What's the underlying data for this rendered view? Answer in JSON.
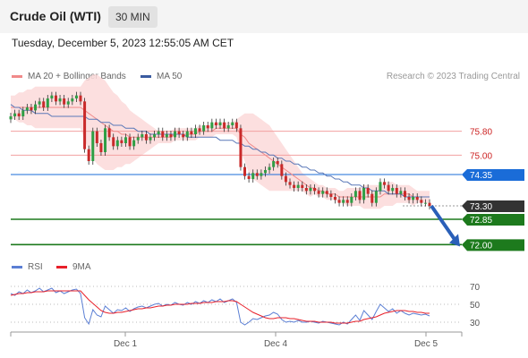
{
  "header": {
    "title": "Crude Oil (WTI)",
    "timeframe": "30 MIN"
  },
  "datetime": "Tuesday, December 5, 2023 12:55:05 AM CET",
  "legend": {
    "items": [
      {
        "label": "MA 20 + Bollinger Bands",
        "color": "#f08a8a"
      },
      {
        "label": "MA 50",
        "color": "#3a5ba0"
      }
    ],
    "copyright": "Research © 2023 Trading Central"
  },
  "rsi_legend": {
    "items": [
      {
        "label": "RSI",
        "color": "#5b7fd4"
      },
      {
        "label": "9MA",
        "color": "#e8202a"
      }
    ]
  },
  "chart_data": {
    "type": "candlestick",
    "x_ticks": [
      "Dec 1",
      "Dec 4",
      "Dec 5"
    ],
    "price_ylim": [
      71.8,
      77.2
    ],
    "levels": [
      {
        "label": "75.80",
        "value": 75.8,
        "kind": "resistance",
        "color": "#cc2222"
      },
      {
        "label": "75.00",
        "value": 75.0,
        "kind": "resistance",
        "color": "#cc2222"
      },
      {
        "label": "74.35",
        "value": 74.35,
        "kind": "pivot",
        "color": "#1a6cd8"
      },
      {
        "label": "73.30",
        "value": 73.3,
        "kind": "last",
        "color": "#333333"
      },
      {
        "label": "72.85",
        "value": 72.85,
        "kind": "support",
        "color": "#1d7a1d"
      },
      {
        "label": "72.00",
        "value": 72.0,
        "kind": "support",
        "color": "#1d7a1d"
      }
    ],
    "close": [
      76.3,
      76.4,
      76.3,
      76.5,
      76.6,
      76.5,
      76.7,
      76.8,
      76.6,
      76.9,
      77.0,
      76.8,
      76.9,
      76.7,
      76.8,
      76.9,
      77.0,
      76.8,
      75.2,
      74.8,
      75.8,
      75.4,
      75.1,
      75.9,
      75.6,
      75.3,
      75.5,
      75.4,
      75.6,
      75.3,
      75.5,
      75.6,
      75.7,
      75.5,
      75.6,
      75.7,
      75.8,
      75.6,
      75.7,
      75.6,
      75.8,
      75.7,
      75.6,
      75.8,
      75.7,
      75.9,
      75.8,
      76.0,
      75.9,
      76.1,
      76.0,
      76.1,
      75.9,
      76.0,
      76.1,
      75.9,
      74.6,
      74.3,
      74.2,
      74.4,
      74.3,
      74.4,
      74.5,
      74.6,
      74.8,
      74.7,
      74.3,
      74.1,
      74.0,
      73.9,
      74.0,
      73.9,
      73.8,
      73.9,
      73.8,
      73.7,
      73.8,
      73.7,
      73.6,
      73.5,
      73.4,
      73.5,
      73.4,
      73.6,
      73.8,
      73.5,
      73.9,
      73.7,
      73.4,
      73.8,
      74.1,
      74.0,
      73.8,
      73.9,
      73.7,
      73.8,
      73.6,
      73.5,
      73.6,
      73.5,
      73.4,
      73.4,
      73.3
    ],
    "ma20": [
      76.6,
      76.6,
      76.6,
      76.6,
      76.6,
      76.6,
      76.6,
      76.6,
      76.6,
      76.6,
      76.6,
      76.6,
      76.6,
      76.6,
      76.6,
      76.6,
      76.6,
      76.6,
      76.5,
      76.4,
      76.3,
      76.2,
      76.1,
      76.0,
      75.9,
      75.8,
      75.8,
      75.7,
      75.7,
      75.6,
      75.6,
      75.6,
      75.6,
      75.6,
      75.6,
      75.6,
      75.6,
      75.6,
      75.6,
      75.6,
      75.7,
      75.7,
      75.7,
      75.7,
      75.7,
      75.7,
      75.8,
      75.8,
      75.8,
      75.8,
      75.9,
      75.9,
      75.9,
      75.9,
      75.9,
      75.9,
      75.7,
      75.6,
      75.4,
      75.3,
      75.2,
      75.1,
      75.0,
      74.9,
      74.8,
      74.7,
      74.6,
      74.5,
      74.4,
      74.3,
      74.2,
      74.1,
      74.0,
      73.9,
      73.9,
      73.8,
      73.8,
      73.7,
      73.7,
      73.7,
      73.6,
      73.6,
      73.6,
      73.6,
      73.6,
      73.6,
      73.6,
      73.6,
      73.6,
      73.6,
      73.6,
      73.7,
      73.7,
      73.7,
      73.7,
      73.7,
      73.7,
      73.7,
      73.6,
      73.6,
      73.6,
      73.6,
      73.6
    ],
    "bb_width": [
      0.4,
      0.4,
      0.5,
      0.5,
      0.6,
      0.6,
      0.7,
      0.7,
      0.7,
      0.7,
      0.7,
      0.7,
      0.7,
      0.7,
      0.7,
      0.7,
      0.7,
      0.7,
      1.0,
      1.2,
      1.4,
      1.5,
      1.5,
      1.5,
      1.4,
      1.3,
      1.2,
      1.1,
      1.0,
      0.9,
      0.8,
      0.7,
      0.6,
      0.5,
      0.4,
      0.3,
      0.2,
      0.2,
      0.2,
      0.2,
      0.2,
      0.2,
      0.2,
      0.2,
      0.2,
      0.2,
      0.2,
      0.2,
      0.2,
      0.2,
      0.2,
      0.2,
      0.2,
      0.2,
      0.2,
      0.3,
      0.6,
      0.8,
      1.0,
      1.1,
      1.1,
      1.1,
      1.1,
      1.1,
      1.0,
      0.9,
      0.8,
      0.7,
      0.6,
      0.5,
      0.4,
      0.3,
      0.3,
      0.3,
      0.2,
      0.2,
      0.2,
      0.2,
      0.2,
      0.2,
      0.2,
      0.2,
      0.3,
      0.3,
      0.3,
      0.3,
      0.4,
      0.4,
      0.4,
      0.4,
      0.4,
      0.4,
      0.4,
      0.4,
      0.3,
      0.3,
      0.3,
      0.3,
      0.3,
      0.2,
      0.2,
      0.2,
      0.2
    ],
    "ma50": [
      76.7,
      76.6,
      76.6,
      76.5,
      76.5,
      76.5,
      76.4,
      76.4,
      76.4,
      76.4,
      76.3,
      76.3,
      76.3,
      76.3,
      76.3,
      76.3,
      76.3,
      76.3,
      76.3,
      76.2,
      76.2,
      76.2,
      76.1,
      76.1,
      76.1,
      76.0,
      76.0,
      76.0,
      75.9,
      75.9,
      75.9,
      75.8,
      75.8,
      75.8,
      75.7,
      75.7,
      75.7,
      75.7,
      75.7,
      75.7,
      75.7,
      75.7,
      75.7,
      75.6,
      75.6,
      75.6,
      75.6,
      75.6,
      75.6,
      75.6,
      75.6,
      75.5,
      75.5,
      75.5,
      75.5,
      75.4,
      75.4,
      75.3,
      75.3,
      75.2,
      75.2,
      75.1,
      75.1,
      75.0,
      75.0,
      74.9,
      74.9,
      74.8,
      74.8,
      74.7,
      74.7,
      74.6,
      74.6,
      74.5,
      74.5,
      74.4,
      74.4,
      74.3,
      74.3,
      74.2,
      74.2,
      74.1,
      74.1,
      74.0,
      74.0,
      74.0,
      73.9,
      73.9,
      73.8,
      73.8,
      73.8,
      73.8,
      73.7,
      73.7,
      73.7,
      73.7,
      73.6,
      73.6,
      73.6,
      73.6,
      73.6,
      73.6,
      73.6
    ],
    "rsi_ylim": [
      20,
      78
    ],
    "rsi_levels": [
      {
        "label": "70",
        "value": 70
      },
      {
        "label": "50",
        "value": 50
      },
      {
        "label": "30",
        "value": 30
      }
    ],
    "rsi": [
      62,
      60,
      64,
      62,
      66,
      63,
      65,
      68,
      64,
      66,
      68,
      63,
      65,
      62,
      64,
      66,
      67,
      62,
      35,
      28,
      44,
      38,
      36,
      48,
      44,
      40,
      44,
      43,
      46,
      42,
      45,
      47,
      48,
      46,
      48,
      50,
      51,
      48,
      50,
      49,
      52,
      50,
      49,
      52,
      50,
      53,
      51,
      54,
      52,
      55,
      53,
      56,
      52,
      54,
      56,
      52,
      30,
      27,
      30,
      34,
      33,
      35,
      37,
      38,
      41,
      39,
      33,
      30,
      31,
      30,
      32,
      30,
      30,
      31,
      30,
      29,
      31,
      30,
      29,
      28,
      27,
      30,
      28,
      33,
      38,
      32,
      43,
      38,
      33,
      42,
      50,
      46,
      42,
      45,
      40,
      43,
      40,
      38,
      40,
      39,
      38,
      39,
      37
    ],
    "rsi_ma": [
      60,
      61,
      62,
      62,
      63,
      63,
      64,
      64,
      64,
      65,
      65,
      65,
      65,
      65,
      65,
      65,
      65,
      65,
      60,
      55,
      51,
      47,
      43,
      41,
      40,
      40,
      41,
      41,
      42,
      43,
      44,
      45,
      45,
      46,
      46,
      47,
      48,
      48,
      49,
      49,
      50,
      50,
      50,
      50,
      51,
      51,
      51,
      52,
      52,
      52,
      53,
      53,
      53,
      54,
      54,
      53,
      50,
      47,
      44,
      41,
      39,
      37,
      35,
      34,
      34,
      35,
      35,
      35,
      34,
      34,
      33,
      32,
      31,
      31,
      31,
      30,
      30,
      30,
      30,
      29,
      29,
      29,
      29,
      30,
      31,
      31,
      33,
      34,
      35,
      36,
      38,
      40,
      41,
      42,
      43,
      43,
      43,
      42,
      42,
      41,
      41,
      40,
      40
    ],
    "forecast": {
      "from": 73.3,
      "to": 72.0
    }
  }
}
